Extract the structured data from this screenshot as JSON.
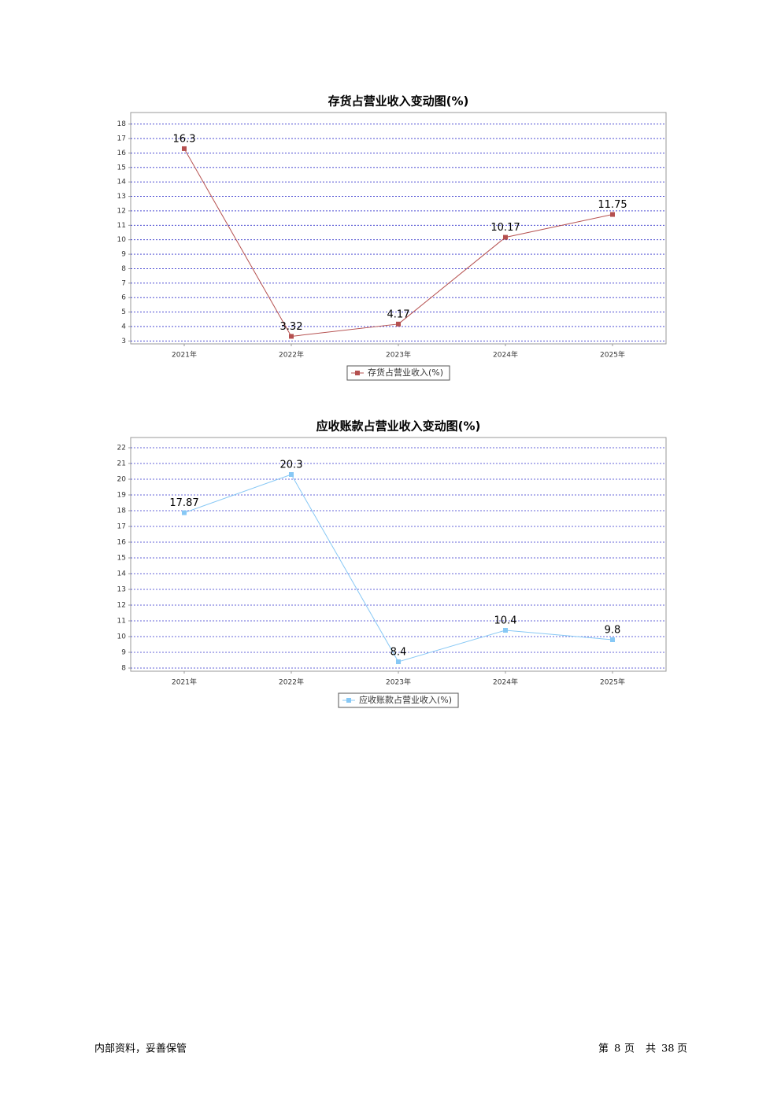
{
  "chart_data": [
    {
      "type": "line",
      "title": "存货占营业收入变动图(%)",
      "categories": [
        "2021年",
        "2022年",
        "2023年",
        "2024年",
        "2025年"
      ],
      "series": [
        {
          "name": "存货占营业收入(%)",
          "color": "#b5504f",
          "values": [
            16.3,
            3.32,
            4.17,
            10.17,
            11.75
          ]
        }
      ],
      "ylim": [
        2.8,
        18.8
      ],
      "yticks": [
        3,
        4,
        5,
        6,
        7,
        8,
        9,
        10,
        11,
        12,
        13,
        14,
        15,
        16,
        17,
        18
      ],
      "grid": true
    },
    {
      "type": "line",
      "title": "应收账款占营业收入变动图(%)",
      "categories": [
        "2021年",
        "2022年",
        "2023年",
        "2024年",
        "2025年"
      ],
      "series": [
        {
          "name": "应收账款占营业收入(%)",
          "color": "#87c8f5",
          "values": [
            17.87,
            20.3,
            8.4,
            10.4,
            9.8
          ]
        }
      ],
      "ylim": [
        7.8,
        22.65
      ],
      "yticks": [
        8,
        9,
        10,
        11,
        12,
        13,
        14,
        15,
        16,
        17,
        18,
        19,
        20,
        21,
        22
      ],
      "grid": true
    }
  ],
  "footer": {
    "left": "内部资料，妥善保管",
    "page_prefix": "第",
    "page": "8",
    "page_suffix": "页",
    "total_prefix": "共",
    "total": "38",
    "total_suffix": "页"
  }
}
